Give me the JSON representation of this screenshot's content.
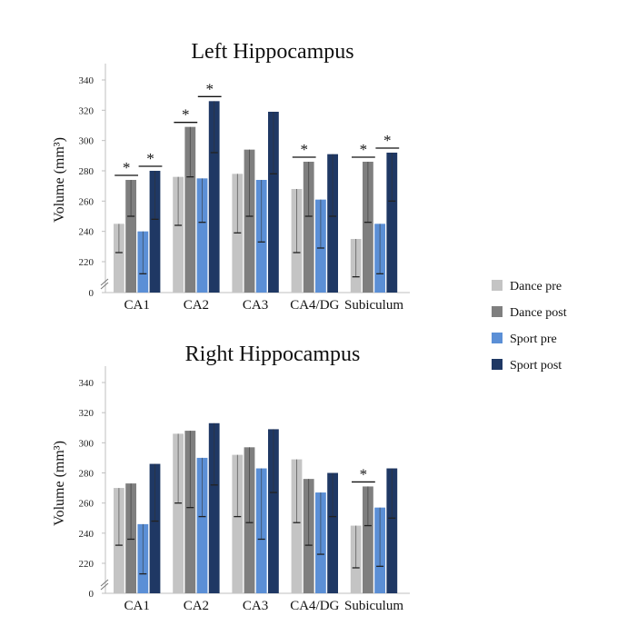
{
  "chart_data": [
    {
      "type": "bar",
      "title": "Left Hippocampus",
      "ylabel": "Volume (mm³)",
      "yticks": [
        0,
        220,
        240,
        260,
        280,
        300,
        320,
        340
      ],
      "ylim": [
        200,
        350
      ],
      "axis_break": true,
      "categories": [
        "CA1",
        "CA2",
        "CA3",
        "CA4/DG",
        "Subiculum"
      ],
      "series": [
        {
          "name": "Dance pre",
          "color": "#c4c4c4",
          "values": [
            245,
            276,
            278,
            268,
            235
          ],
          "error_low": [
            226,
            244,
            239,
            226,
            210
          ]
        },
        {
          "name": "Dance post",
          "color": "#7f7f7f",
          "values": [
            274,
            309,
            294,
            286,
            286
          ],
          "error_low": [
            250,
            276,
            250,
            250,
            246
          ]
        },
        {
          "name": "Sport pre",
          "color": "#5b8fd6",
          "values": [
            240,
            275,
            274,
            261,
            245
          ],
          "error_low": [
            212,
            246,
            233,
            229,
            212
          ]
        },
        {
          "name": "Sport post",
          "color": "#1f3864",
          "values": [
            280,
            326,
            319,
            291,
            292
          ],
          "error_low": [
            248,
            292,
            278,
            250,
            260
          ]
        }
      ],
      "significance": [
        {
          "category": "CA1",
          "series": "Dance post",
          "label": "*"
        },
        {
          "category": "CA1",
          "series": "Sport post",
          "label": "*"
        },
        {
          "category": "CA2",
          "series": "Dance post",
          "label": "*"
        },
        {
          "category": "CA2",
          "series": "Sport post",
          "label": "*"
        },
        {
          "category": "CA4/DG",
          "series": "Dance post",
          "label": "*"
        },
        {
          "category": "Subiculum",
          "series": "Dance post",
          "label": "*"
        },
        {
          "category": "Subiculum",
          "series": "Sport post",
          "label": "*"
        }
      ]
    },
    {
      "type": "bar",
      "title": "Right Hippocampus",
      "ylabel": "Volume (mm³)",
      "yticks": [
        0,
        220,
        240,
        260,
        280,
        300,
        320,
        340
      ],
      "ylim": [
        200,
        350
      ],
      "axis_break": true,
      "categories": [
        "CA1",
        "CA2",
        "CA3",
        "CA4/DG",
        "Subiculum"
      ],
      "series": [
        {
          "name": "Dance pre",
          "color": "#c4c4c4",
          "values": [
            270,
            306,
            292,
            289,
            245
          ],
          "error_low": [
            232,
            260,
            251,
            247,
            217
          ]
        },
        {
          "name": "Dance post",
          "color": "#7f7f7f",
          "values": [
            273,
            308,
            297,
            276,
            271
          ],
          "error_low": [
            236,
            257,
            247,
            232,
            245
          ]
        },
        {
          "name": "Sport pre",
          "color": "#5b8fd6",
          "values": [
            246,
            290,
            283,
            267,
            257
          ],
          "error_low": [
            213,
            251,
            236,
            226,
            218
          ]
        },
        {
          "name": "Sport post",
          "color": "#1f3864",
          "values": [
            286,
            313,
            309,
            280,
            283
          ],
          "error_low": [
            248,
            272,
            267,
            251,
            250
          ]
        }
      ],
      "significance": [
        {
          "category": "Subiculum",
          "series": "Dance post",
          "label": "*"
        }
      ]
    }
  ],
  "legend": {
    "placement": "right",
    "items": [
      {
        "label": "Dance pre",
        "color": "#c4c4c4"
      },
      {
        "label": "Dance post",
        "color": "#7f7f7f"
      },
      {
        "label": "Sport pre",
        "color": "#5b8fd6"
      },
      {
        "label": "Sport post",
        "color": "#1f3864"
      }
    ]
  }
}
